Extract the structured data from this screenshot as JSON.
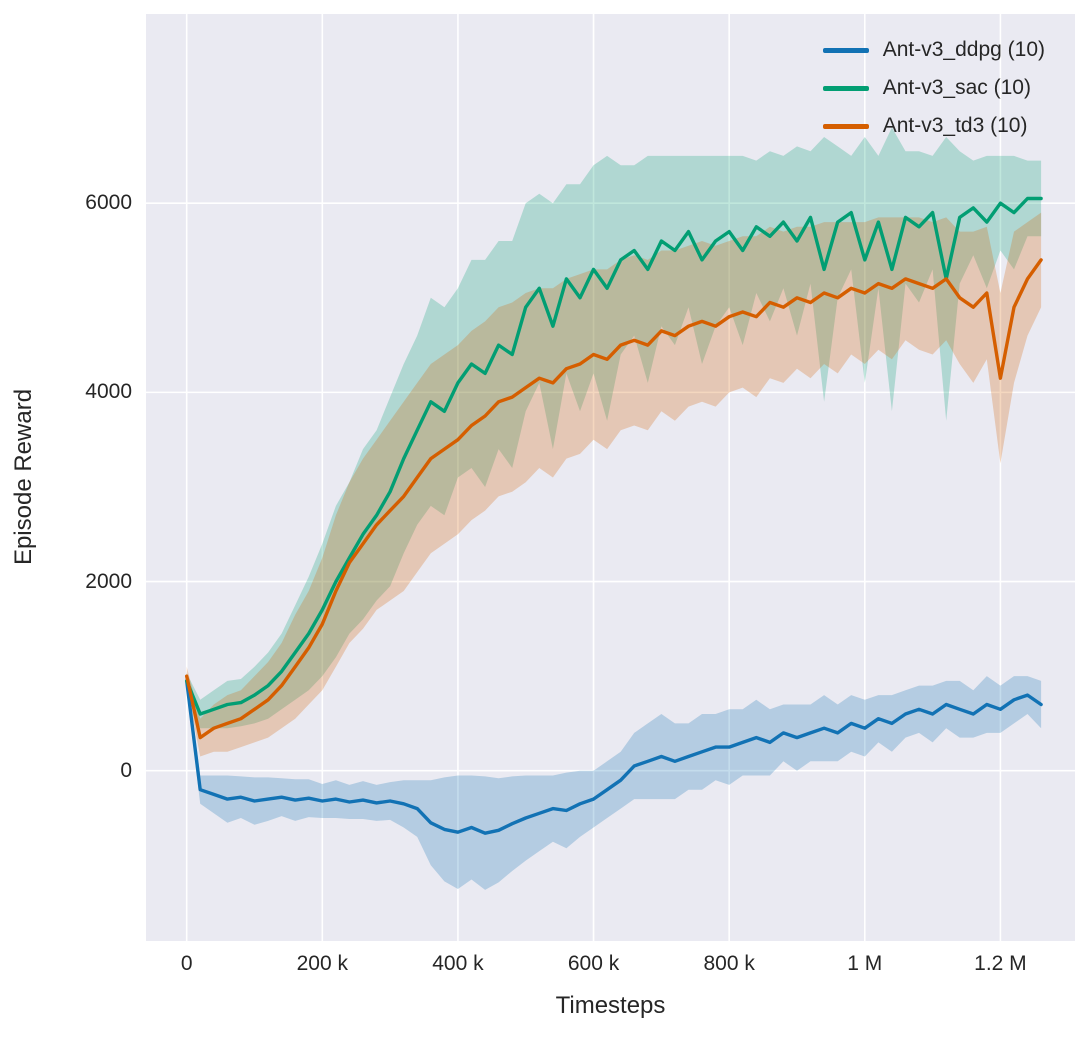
{
  "figure": {
    "background": "#ffffff",
    "axes_background": "#eaeaf2",
    "grid_color": "#ffffff",
    "text_color": "#262626"
  },
  "chart_data": {
    "type": "line",
    "title": "",
    "xlabel": "Timesteps",
    "ylabel": "Episode Reward",
    "grid": true,
    "legend_position": "upper right",
    "xlim": [
      -60000,
      1310000
    ],
    "ylim": [
      -1800,
      8000
    ],
    "x_step": 20000,
    "x_ticks": [
      {
        "v": 0,
        "label": "0"
      },
      {
        "v": 200000,
        "label": "200 k"
      },
      {
        "v": 400000,
        "label": "400 k"
      },
      {
        "v": 600000,
        "label": "600 k"
      },
      {
        "v": 800000,
        "label": "800 k"
      },
      {
        "v": 1000000,
        "label": "1 M"
      },
      {
        "v": 1200000,
        "label": "1.2 M"
      }
    ],
    "y_ticks": [
      {
        "v": 0,
        "label": "0"
      },
      {
        "v": 2000,
        "label": "2000"
      },
      {
        "v": 4000,
        "label": "4000"
      },
      {
        "v": 6000,
        "label": "6000"
      }
    ],
    "band_opacity": 0.25,
    "series": [
      {
        "name": "Ant-v3_ddpg (10)",
        "color": "#1272b4",
        "mean": [
          950,
          -200,
          -250,
          -300,
          -280,
          -320,
          -300,
          -280,
          -310,
          -290,
          -320,
          -300,
          -330,
          -310,
          -340,
          -320,
          -350,
          -400,
          -550,
          -620,
          -650,
          -600,
          -660,
          -630,
          -560,
          -500,
          -450,
          -400,
          -420,
          -350,
          -300,
          -200,
          -100,
          50,
          100,
          150,
          100,
          150,
          200,
          250,
          250,
          300,
          350,
          300,
          400,
          350,
          400,
          450,
          400,
          500,
          450,
          550,
          500,
          600,
          650,
          600,
          700,
          650,
          600,
          700,
          650,
          750,
          800,
          700
        ],
        "spread": [
          100,
          150,
          200,
          250,
          220,
          250,
          230,
          200,
          220,
          200,
          180,
          200,
          180,
          200,
          190,
          200,
          250,
          300,
          450,
          550,
          600,
          550,
          600,
          550,
          500,
          450,
          400,
          350,
          400,
          350,
          300,
          300,
          300,
          350,
          400,
          450,
          400,
          350,
          400,
          350,
          400,
          350,
          400,
          350,
          300,
          350,
          300,
          350,
          300,
          300,
          300,
          250,
          300,
          250,
          250,
          300,
          250,
          300,
          250,
          300,
          250,
          250,
          200,
          250
        ]
      },
      {
        "name": "Ant-v3_sac (10)",
        "color": "#029e73",
        "mean": [
          950,
          600,
          650,
          700,
          720,
          800,
          900,
          1050,
          1250,
          1450,
          1700,
          2000,
          2250,
          2500,
          2700,
          2950,
          3300,
          3600,
          3900,
          3800,
          4100,
          4300,
          4200,
          4500,
          4400,
          4900,
          5100,
          4700,
          5200,
          5000,
          5300,
          5100,
          5400,
          5500,
          5300,
          5600,
          5500,
          5700,
          5400,
          5600,
          5700,
          5500,
          5750,
          5650,
          5800,
          5600,
          5850,
          5300,
          5800,
          5900,
          5400,
          5800,
          5300,
          5850,
          5750,
          5900,
          5200,
          5850,
          5950,
          5800,
          6000,
          5900,
          6050,
          6050
        ],
        "spread": [
          80,
          150,
          200,
          250,
          250,
          300,
          350,
          400,
          500,
          600,
          700,
          800,
          800,
          900,
          900,
          1000,
          1000,
          1000,
          1100,
          1100,
          1000,
          1100,
          1200,
          1100,
          1200,
          1100,
          1000,
          1300,
          1000,
          1200,
          1100,
          1400,
          1000,
          900,
          1200,
          900,
          1000,
          800,
          1100,
          900,
          800,
          1000,
          700,
          900,
          700,
          1000,
          700,
          1400,
          800,
          600,
          1300,
          700,
          1500,
          700,
          800,
          600,
          1500,
          700,
          500,
          700,
          500,
          600,
          400,
          400
        ]
      },
      {
        "name": "Ant-v3_td3 (10)",
        "color": "#d55e00",
        "mean": [
          1000,
          350,
          450,
          500,
          550,
          650,
          750,
          900,
          1100,
          1300,
          1550,
          1900,
          2200,
          2400,
          2600,
          2750,
          2900,
          3100,
          3300,
          3400,
          3500,
          3650,
          3750,
          3900,
          3950,
          4050,
          4150,
          4100,
          4250,
          4300,
          4400,
          4350,
          4500,
          4550,
          4500,
          4650,
          4600,
          4700,
          4750,
          4700,
          4800,
          4850,
          4800,
          4950,
          4900,
          5000,
          4950,
          5050,
          5000,
          5100,
          5050,
          5150,
          5100,
          5200,
          5150,
          5100,
          5200,
          5000,
          4900,
          5050,
          4150,
          4900,
          5200,
          5400
        ],
        "spread": [
          100,
          200,
          250,
          300,
          300,
          350,
          400,
          450,
          550,
          600,
          700,
          800,
          850,
          900,
          900,
          950,
          1000,
          1000,
          1000,
          1000,
          1000,
          1000,
          1000,
          1000,
          1000,
          1000,
          950,
          1000,
          950,
          950,
          900,
          950,
          900,
          900,
          900,
          850,
          900,
          850,
          850,
          850,
          800,
          800,
          850,
          800,
          800,
          750,
          800,
          750,
          800,
          700,
          750,
          700,
          750,
          650,
          700,
          700,
          650,
          700,
          800,
          700,
          900,
          800,
          600,
          500
        ]
      }
    ]
  }
}
